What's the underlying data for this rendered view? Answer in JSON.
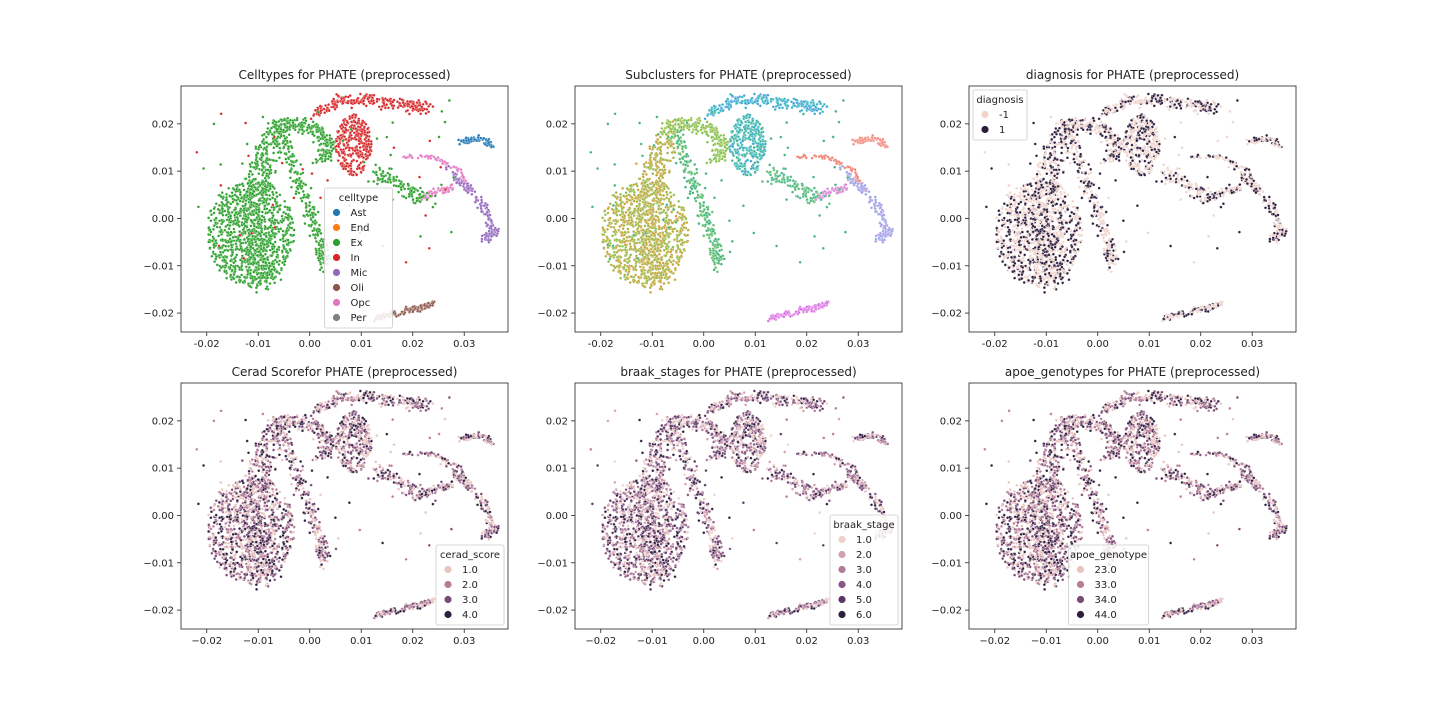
{
  "figure": {
    "background": "#ffffff"
  },
  "chart_data": [
    {
      "type": "scatter",
      "title": "Celltypes for PHATE (preprocessed)",
      "xlabel": "",
      "ylabel": "",
      "xlim": [
        -0.025,
        0.0385
      ],
      "ylim": [
        -0.024,
        0.028
      ],
      "xticks": [
        "-0.02",
        "-0.01",
        "0.00",
        "0.01",
        "0.02",
        "0.03"
      ],
      "xtick_values": [
        -0.02,
        -0.01,
        0.0,
        0.01,
        0.02,
        0.03
      ],
      "yticks": [
        "−0.02",
        "−0.01",
        "0.00",
        "0.01",
        "0.02"
      ],
      "ytick_values": [
        -0.02,
        -0.01,
        0.0,
        0.01,
        0.02
      ],
      "color_by": "celltype",
      "legend": {
        "title": "celltype",
        "location": "lower center",
        "entries": [
          {
            "label": "Ast",
            "color": "#1f77b4"
          },
          {
            "label": "End",
            "color": "#ff7f0e"
          },
          {
            "label": "Ex",
            "color": "#2ca02c"
          },
          {
            "label": "In",
            "color": "#d62728"
          },
          {
            "label": "Mic",
            "color": "#9467bd"
          },
          {
            "label": "Oli",
            "color": "#8c564b"
          },
          {
            "label": "Opc",
            "color": "#e377c2"
          },
          {
            "label": "Per",
            "color": "#7f7f7f"
          }
        ]
      }
    },
    {
      "type": "scatter",
      "title": "Subclusters for PHATE (preprocessed)",
      "xlabel": "",
      "ylabel": "",
      "xlim": [
        -0.025,
        0.0385
      ],
      "ylim": [
        -0.024,
        0.028
      ],
      "xticks": [
        "-0.02",
        "-0.01",
        "0.00",
        "0.01",
        "0.02",
        "0.03"
      ],
      "xtick_values": [
        -0.02,
        -0.01,
        0.0,
        0.01,
        0.02,
        0.03
      ],
      "yticks": [
        "−0.02",
        "−0.01",
        "0.00",
        "0.01",
        "0.02"
      ],
      "ytick_values": [
        -0.02,
        -0.01,
        0.0,
        0.01,
        0.02
      ],
      "color_by": "subcluster",
      "legend": null
    },
    {
      "type": "scatter",
      "title": "diagnosis for PHATE (preprocessed)",
      "xlabel": "",
      "ylabel": "",
      "xlim": [
        -0.025,
        0.0385
      ],
      "ylim": [
        -0.024,
        0.028
      ],
      "xticks": [
        "-0.02",
        "-0.01",
        "0.00",
        "0.01",
        "0.02",
        "0.03"
      ],
      "xtick_values": [
        -0.02,
        -0.01,
        0.0,
        0.01,
        0.02,
        0.03
      ],
      "yticks": [
        "−0.02",
        "−0.01",
        "0.00",
        "0.01",
        "0.02"
      ],
      "ytick_values": [
        -0.02,
        -0.01,
        0.0,
        0.01,
        0.02
      ],
      "color_by": "diagnosis",
      "legend": {
        "title": "diagnosis",
        "location": "upper left",
        "entries": [
          {
            "label": "-1",
            "color": "#f0d3cb"
          },
          {
            "label": "1",
            "color": "#2d1e3e"
          }
        ]
      }
    },
    {
      "type": "scatter",
      "title": "Cerad Scorefor PHATE (preprocessed)",
      "xlabel": "",
      "ylabel": "",
      "xlim": [
        -0.025,
        0.0385
      ],
      "ylim": [
        -0.024,
        0.028
      ],
      "xticks": [
        "−0.02",
        "−0.01",
        "0.00",
        "0.01",
        "0.02",
        "0.03"
      ],
      "xtick_values": [
        -0.02,
        -0.01,
        0.0,
        0.01,
        0.02,
        0.03
      ],
      "yticks": [
        "−0.02",
        "−0.01",
        "0.00",
        "0.01",
        "0.02"
      ],
      "ytick_values": [
        -0.02,
        -0.01,
        0.0,
        0.01,
        0.02
      ],
      "color_by": "cerad_score",
      "legend": {
        "title": "cerad_score",
        "location": "lower right",
        "entries": [
          {
            "label": "1.0",
            "color": "#e9c4bf"
          },
          {
            "label": "2.0",
            "color": "#b97c98"
          },
          {
            "label": "3.0",
            "color": "#7a4a77"
          },
          {
            "label": "4.0",
            "color": "#2d1e3e"
          }
        ]
      }
    },
    {
      "type": "scatter",
      "title": "braak_stages for PHATE (preprocessed)",
      "xlabel": "",
      "ylabel": "",
      "xlim": [
        -0.025,
        0.0385
      ],
      "ylim": [
        -0.024,
        0.028
      ],
      "xticks": [
        "−0.02",
        "−0.01",
        "0.00",
        "0.01",
        "0.02",
        "0.03"
      ],
      "xtick_values": [
        -0.02,
        -0.01,
        0.0,
        0.01,
        0.02,
        0.03
      ],
      "yticks": [
        "−0.02",
        "−0.01",
        "0.00",
        "0.01",
        "0.02"
      ],
      "ytick_values": [
        -0.02,
        -0.01,
        0.0,
        0.01,
        0.02
      ],
      "color_by": "braak_stage",
      "legend": {
        "title": "braak_stage",
        "location": "lower right",
        "entries": [
          {
            "label": "1.0",
            "color": "#efcfc8"
          },
          {
            "label": "2.0",
            "color": "#d3a0ad"
          },
          {
            "label": "3.0",
            "color": "#b07a9b"
          },
          {
            "label": "4.0",
            "color": "#8a5686"
          },
          {
            "label": "5.0",
            "color": "#5b3766"
          },
          {
            "label": "6.0",
            "color": "#2d1e3e"
          }
        ]
      }
    },
    {
      "type": "scatter",
      "title": "apoe_genotypes for PHATE (preprocessed)",
      "xlabel": "",
      "ylabel": "",
      "xlim": [
        -0.025,
        0.0385
      ],
      "ylim": [
        -0.024,
        0.028
      ],
      "xticks": [
        "−0.02",
        "−0.01",
        "0.00",
        "0.01",
        "0.02",
        "0.03"
      ],
      "xtick_values": [
        -0.02,
        -0.01,
        0.0,
        0.01,
        0.02,
        0.03
      ],
      "yticks": [
        "−0.02",
        "−0.01",
        "0.00",
        "0.01",
        "0.02"
      ],
      "ytick_values": [
        -0.02,
        -0.01,
        0.0,
        0.01,
        0.02
      ],
      "color_by": "apoe_genotype",
      "legend": {
        "title": "apoe_genotype",
        "location": "lower center",
        "entries": [
          {
            "label": "23.0",
            "color": "#e9c4bf"
          },
          {
            "label": "33.0",
            "color": "#b97c98"
          },
          {
            "label": "34.0",
            "color": "#7a4a77"
          },
          {
            "label": "44.0",
            "color": "#2d1e3e"
          }
        ]
      }
    }
  ]
}
